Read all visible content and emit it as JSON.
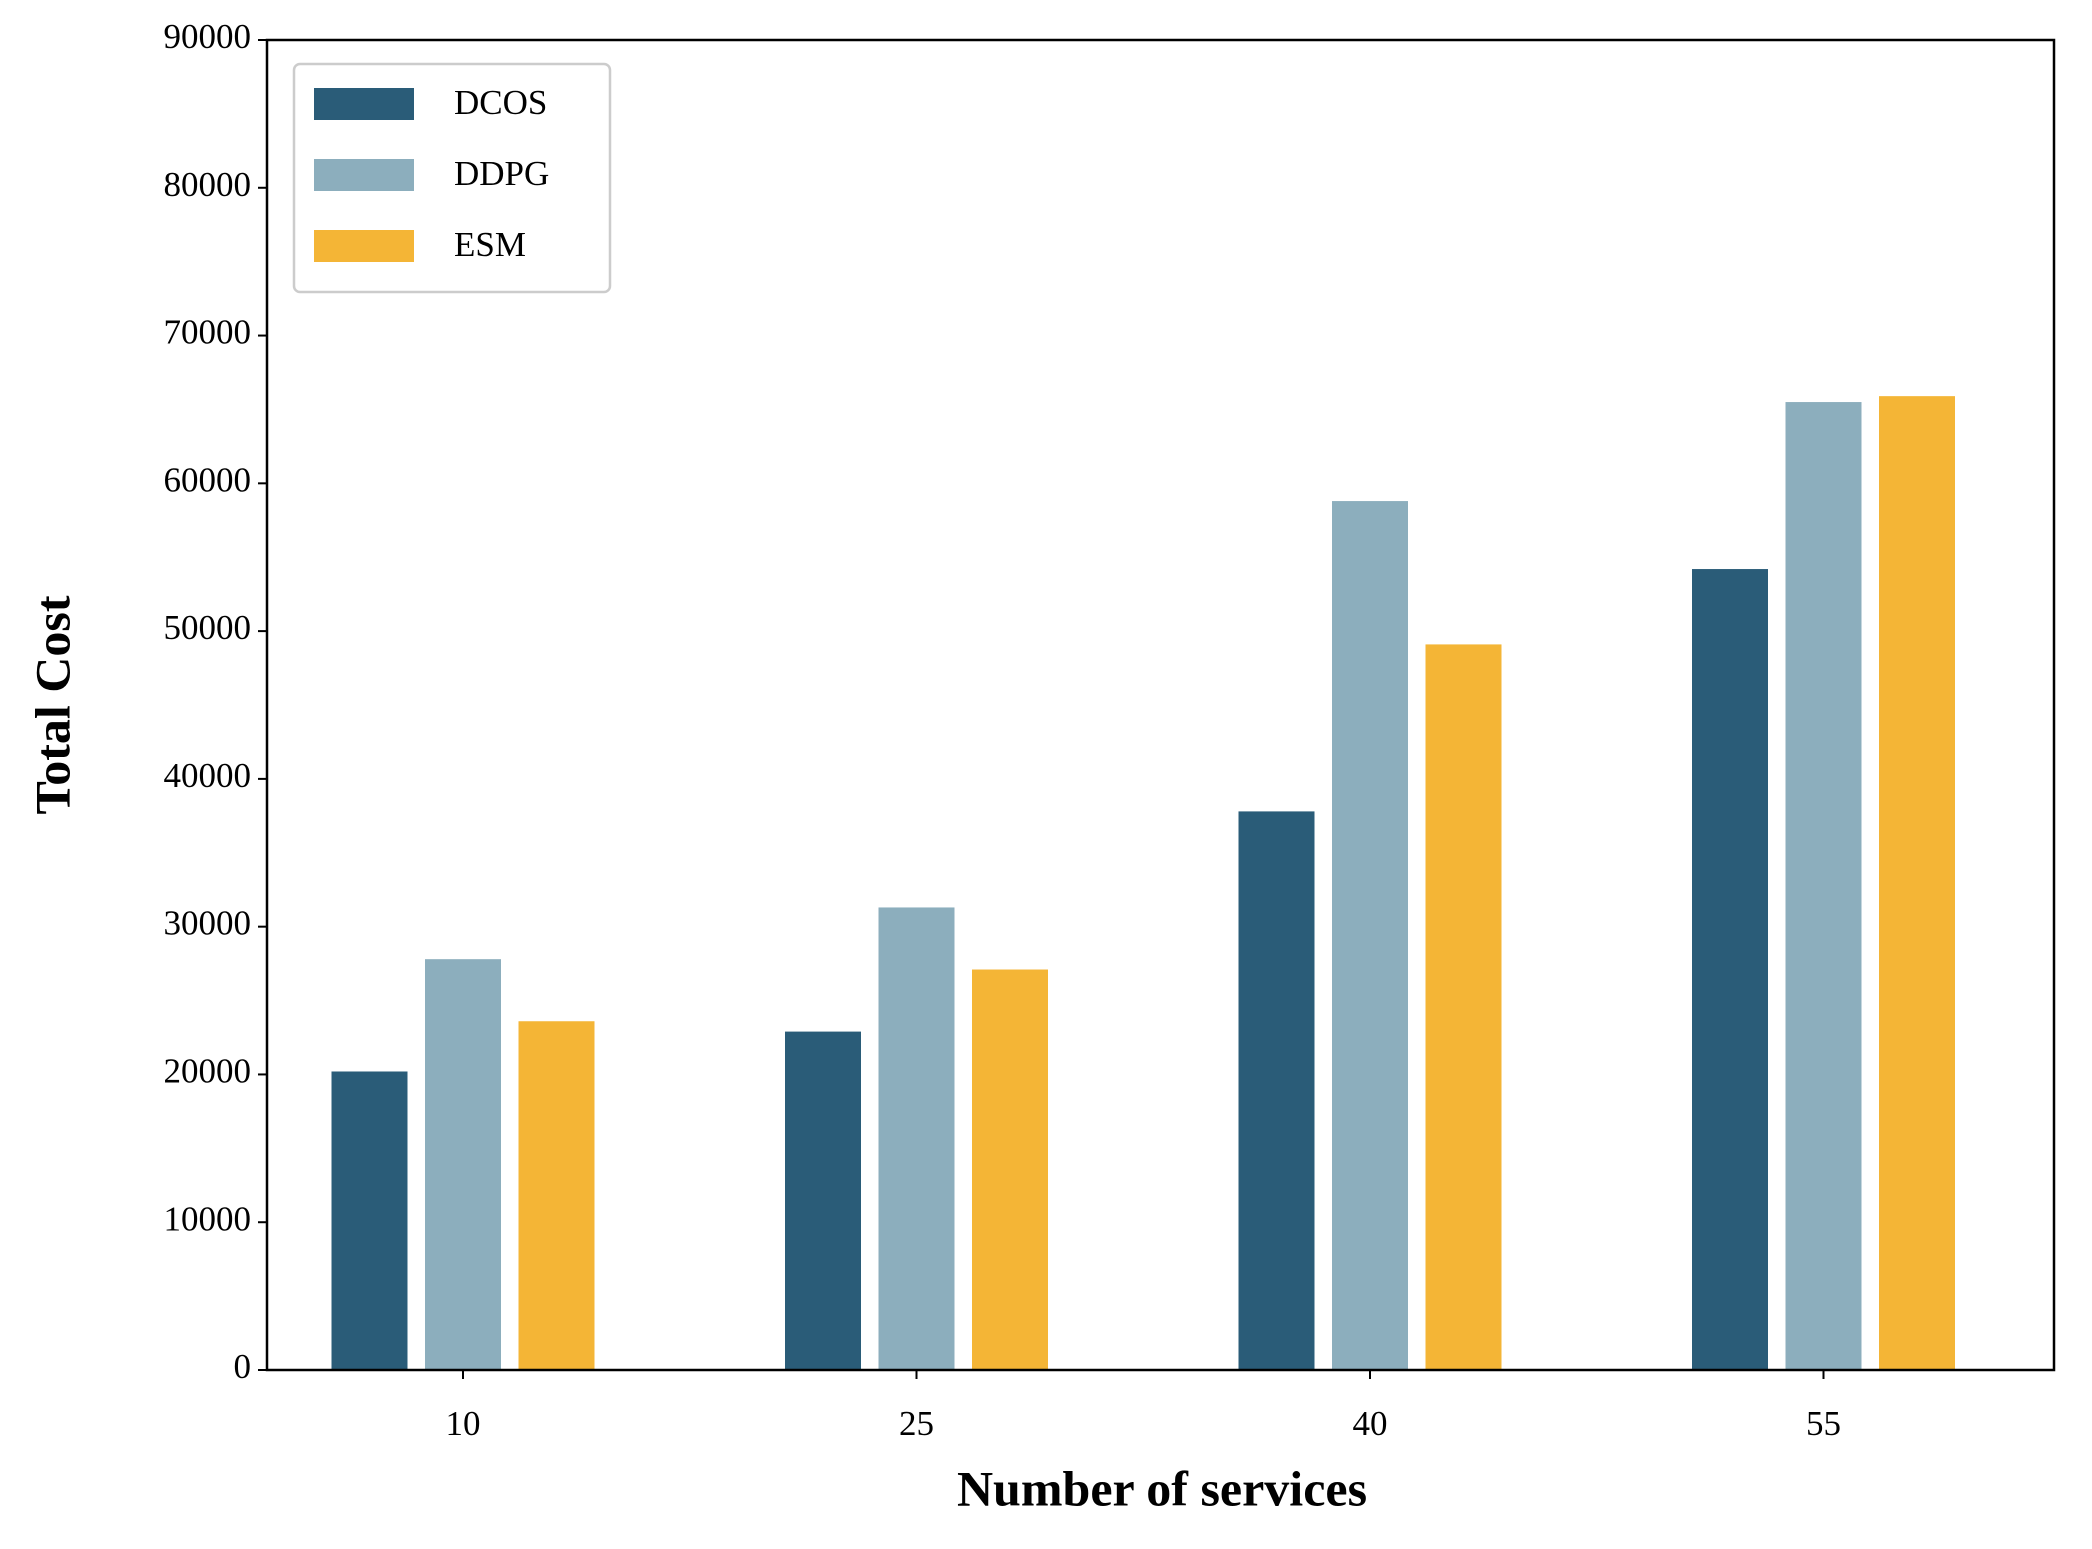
{
  "chart_data": {
    "type": "bar",
    "xlabel": "Number of services",
    "ylabel": "Total Cost",
    "categories": [
      "10",
      "25",
      "40",
      "55"
    ],
    "series": [
      {
        "name": "DCOS",
        "color": "#2a5c78",
        "values": [
          20200,
          22900,
          37800,
          54200
        ]
      },
      {
        "name": "DDPG",
        "color": "#8caebd",
        "values": [
          27800,
          31300,
          58800,
          65500
        ]
      },
      {
        "name": "ESM",
        "color": "#f4b536",
        "values": [
          23600,
          27100,
          49100,
          65900
        ]
      }
    ],
    "ylim": [
      0,
      90000
    ],
    "yticks": [
      0,
      10000,
      20000,
      30000,
      40000,
      50000,
      60000,
      70000,
      80000,
      90000
    ],
    "legend": "upper left"
  }
}
